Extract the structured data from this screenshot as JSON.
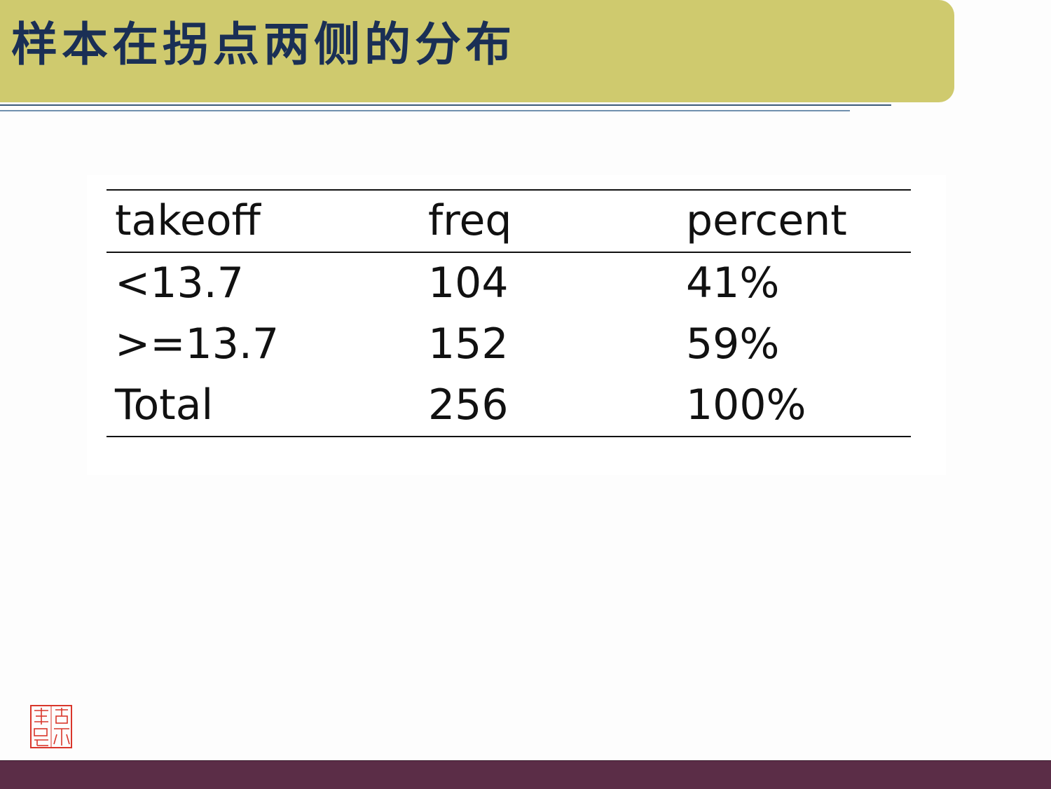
{
  "slide": {
    "title": "样本在拐点两侧的分布"
  },
  "table": {
    "headers": [
      "takeoff",
      "freq",
      "percent"
    ],
    "rows": [
      [
        "<13.7",
        "104",
        "41%"
      ],
      [
        ">=13.7",
        "152",
        "59%"
      ],
      [
        "Total",
        "256",
        "100%"
      ]
    ]
  },
  "seal": {
    "icon": "seal-stamp-icon",
    "color": "#d9362b"
  },
  "colors": {
    "title_bar": "#cfca6e",
    "title_text": "#1a2f55",
    "footer_bar": "#5b2d47"
  }
}
